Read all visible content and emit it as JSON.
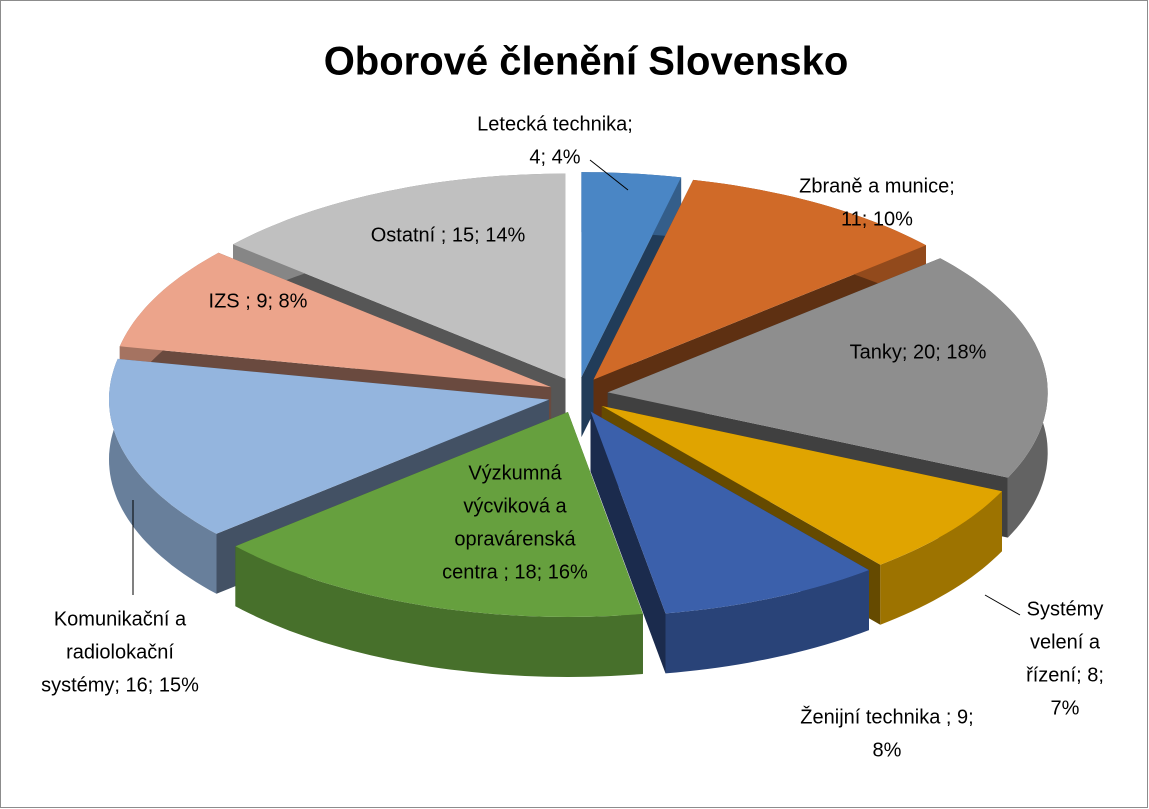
{
  "chart_data": {
    "type": "pie3d",
    "title": "Oborové členění Slovensko",
    "values": [
      4,
      11,
      20,
      8,
      9,
      18,
      16,
      9,
      15
    ],
    "value_labels": [
      [
        "Letecká technika;",
        "4; 4%"
      ],
      [
        "Zbraně a munice;",
        "11; 10%"
      ],
      [
        "Tanky; 20; 18%"
      ],
      [
        "Systémy",
        "velení a",
        "řízení; 8;",
        "7%"
      ],
      [
        "Ženijní technika ; 9;",
        "8%"
      ],
      [
        "Výzkumná",
        "výcviková a",
        "opravárenská",
        "centra ; 18; 16%"
      ],
      [
        "Komunikační a",
        "radiolokační",
        "systémy; 16; 15%"
      ],
      [
        "IZS ; 9; 8%"
      ],
      [
        "Ostatní ; 15; 14%"
      ]
    ],
    "colors": [
      "#4a86c5",
      "#d06a28",
      "#8e8e8e",
      "#e0a400",
      "#3b60ab",
      "#66a03e",
      "#94b5de",
      "#eca48b",
      "#c0c0c0"
    ]
  }
}
